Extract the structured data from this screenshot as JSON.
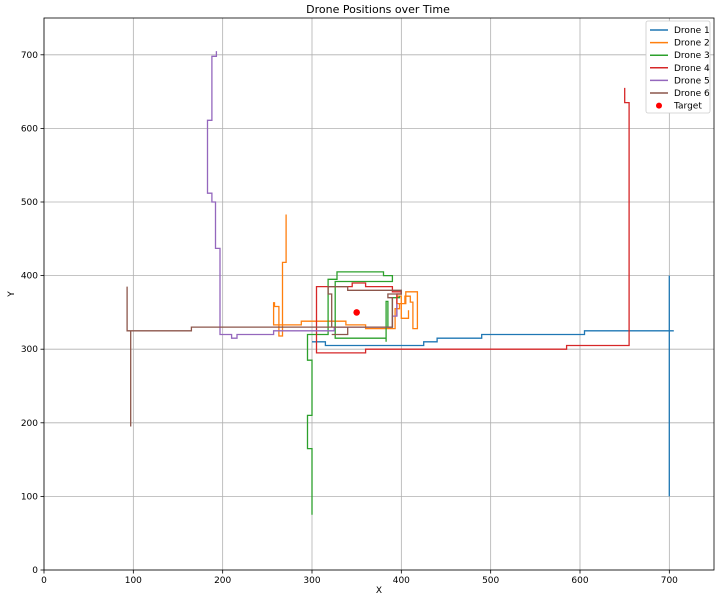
{
  "chart_data": {
    "type": "line",
    "title": "Drone Positions over Time",
    "xlabel": "X",
    "ylabel": "Y",
    "xlim": [
      0,
      750
    ],
    "ylim": [
      0,
      750
    ],
    "xticks": [
      0,
      100,
      200,
      300,
      400,
      500,
      600,
      700
    ],
    "yticks": [
      0,
      100,
      200,
      300,
      400,
      500,
      600,
      700
    ],
    "grid": true,
    "legend_position": "top-right",
    "series": [
      {
        "name": "Drone 1",
        "color": "#1f77b4",
        "points": [
          [
            700,
            100
          ],
          [
            700,
            400
          ],
          [
            700,
            325
          ],
          [
            705,
            325
          ],
          [
            605,
            325
          ],
          [
            605,
            320
          ],
          [
            490,
            320
          ],
          [
            490,
            315
          ],
          [
            440,
            315
          ],
          [
            440,
            310
          ],
          [
            425,
            310
          ],
          [
            425,
            305
          ],
          [
            315,
            305
          ],
          [
            315,
            310
          ],
          [
            300,
            310
          ]
        ]
      },
      {
        "name": "Drone 2",
        "color": "#ff7f0e",
        "points": [
          [
            271,
            483
          ],
          [
            271,
            418
          ],
          [
            267,
            418
          ],
          [
            267,
            318
          ],
          [
            263,
            318
          ],
          [
            263,
            358
          ],
          [
            258,
            358
          ],
          [
            258,
            363
          ],
          [
            257,
            363
          ],
          [
            257,
            333
          ],
          [
            288,
            333
          ],
          [
            288,
            338
          ],
          [
            338,
            338
          ],
          [
            338,
            333
          ],
          [
            360,
            333
          ],
          [
            360,
            328
          ],
          [
            393,
            328
          ],
          [
            393,
            355
          ],
          [
            398,
            355
          ],
          [
            398,
            362
          ],
          [
            404,
            362
          ],
          [
            404,
            372
          ],
          [
            410,
            372
          ],
          [
            410,
            364
          ],
          [
            413,
            364
          ],
          [
            413,
            328
          ],
          [
            418,
            328
          ],
          [
            418,
            378
          ],
          [
            405,
            378
          ],
          [
            405,
            362
          ],
          [
            395,
            362
          ],
          [
            395,
            372
          ],
          [
            400,
            372
          ],
          [
            400,
            342
          ],
          [
            408,
            342
          ],
          [
            408,
            353
          ]
        ]
      },
      {
        "name": "Drone 3",
        "color": "#2ca02c",
        "points": [
          [
            300,
            75
          ],
          [
            300,
            165
          ],
          [
            295,
            165
          ],
          [
            295,
            210
          ],
          [
            300,
            210
          ],
          [
            300,
            285
          ],
          [
            295,
            285
          ],
          [
            295,
            320
          ],
          [
            318,
            320
          ],
          [
            318,
            395
          ],
          [
            328,
            395
          ],
          [
            328,
            405
          ],
          [
            380,
            405
          ],
          [
            380,
            400
          ],
          [
            390,
            400
          ],
          [
            390,
            392
          ],
          [
            326,
            392
          ],
          [
            326,
            315
          ],
          [
            383,
            315
          ],
          [
            383,
            310
          ],
          [
            383,
            365
          ],
          [
            385,
            365
          ],
          [
            385,
            330
          ],
          [
            390,
            330
          ],
          [
            390,
            370
          ],
          [
            398,
            370
          ],
          [
            398,
            372
          ]
        ]
      },
      {
        "name": "Drone 4",
        "color": "#d62728",
        "points": [
          [
            650,
            655
          ],
          [
            650,
            635
          ],
          [
            655,
            635
          ],
          [
            655,
            305
          ],
          [
            585,
            305
          ],
          [
            585,
            300
          ],
          [
            360,
            300
          ],
          [
            360,
            295
          ],
          [
            305,
            295
          ],
          [
            305,
            385
          ],
          [
            345,
            385
          ],
          [
            345,
            390
          ],
          [
            360,
            390
          ],
          [
            360,
            385
          ],
          [
            390,
            385
          ],
          [
            390,
            378
          ],
          [
            400,
            378
          ],
          [
            400,
            375
          ],
          [
            395,
            375
          ],
          [
            395,
            345
          ]
        ]
      },
      {
        "name": "Drone 5",
        "color": "#9467bd",
        "points": [
          [
            193,
            705
          ],
          [
            193,
            698
          ],
          [
            188,
            698
          ],
          [
            188,
            611
          ],
          [
            183,
            611
          ],
          [
            183,
            512
          ],
          [
            188,
            512
          ],
          [
            188,
            500
          ],
          [
            192,
            500
          ],
          [
            192,
            437
          ],
          [
            197,
            437
          ],
          [
            197,
            320
          ],
          [
            210,
            320
          ],
          [
            210,
            315
          ],
          [
            216,
            315
          ],
          [
            216,
            320
          ],
          [
            257,
            320
          ],
          [
            257,
            325
          ],
          [
            325,
            325
          ],
          [
            325,
            330
          ],
          [
            390,
            330
          ],
          [
            390,
            345
          ],
          [
            395,
            345
          ],
          [
            395,
            362
          ]
        ]
      },
      {
        "name": "Drone 6",
        "color": "#8c564b",
        "points": [
          [
            97,
            195
          ],
          [
            97,
            325
          ],
          [
            93,
            325
          ],
          [
            93,
            330
          ],
          [
            93,
            385
          ],
          [
            93,
            325
          ],
          [
            165,
            325
          ],
          [
            165,
            330
          ],
          [
            390,
            330
          ],
          [
            390,
            370
          ],
          [
            385,
            370
          ],
          [
            385,
            375
          ],
          [
            400,
            375
          ],
          [
            400,
            380
          ],
          [
            340,
            380
          ],
          [
            340,
            385
          ],
          [
            318,
            385
          ],
          [
            318,
            375
          ],
          [
            322,
            375
          ],
          [
            322,
            330
          ],
          [
            340,
            330
          ],
          [
            340,
            320
          ],
          [
            322,
            320
          ]
        ]
      }
    ],
    "target": {
      "name": "Target",
      "color": "#ff0000",
      "x": 350,
      "y": 350
    }
  }
}
